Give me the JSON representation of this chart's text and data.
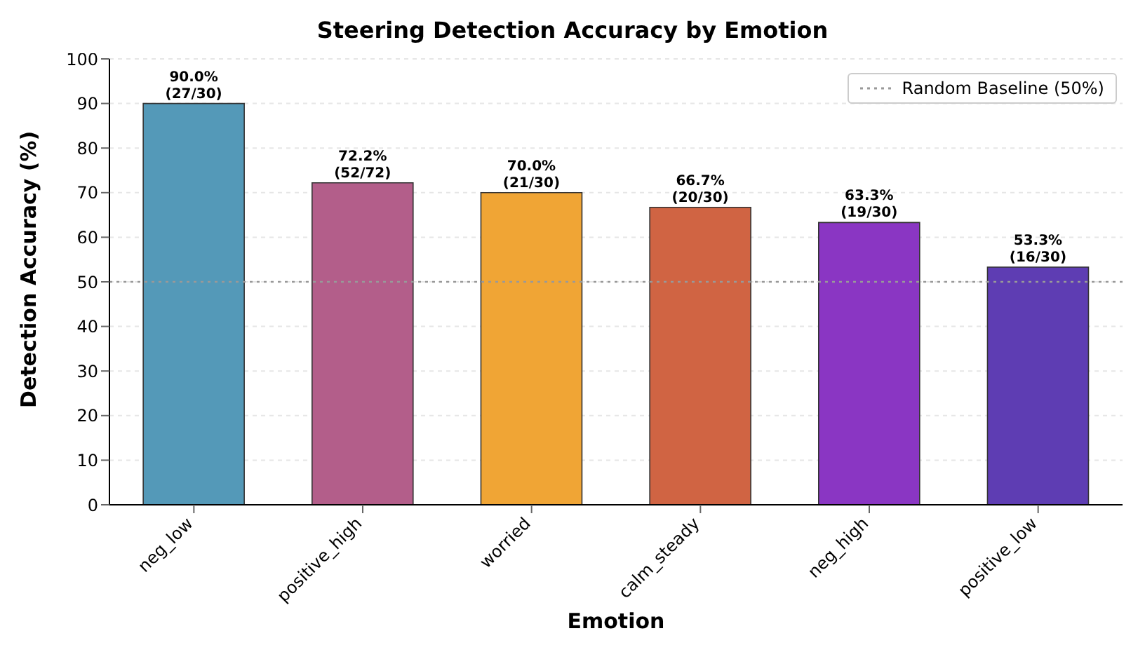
{
  "chart_data": {
    "type": "bar",
    "title": "Steering Detection Accuracy by Emotion",
    "xlabel": "Emotion",
    "ylabel": "Detection Accuracy (%)",
    "categories": [
      "neg_low",
      "positive_high",
      "worried",
      "calm_steady",
      "neg_high",
      "positive_low"
    ],
    "values": [
      90.0,
      72.2,
      70.0,
      66.7,
      63.3,
      53.3
    ],
    "colors": [
      "#5499b8",
      "#b35e8a",
      "#f0a535",
      "#d06443",
      "#8a36c3",
      "#5e3db3"
    ],
    "value_labels": [
      "90.0%\n(27/30)",
      "72.2%\n(52/72)",
      "70.0%\n(21/30)",
      "66.7%\n(20/30)",
      "63.3%\n(19/30)",
      "53.3%\n(16/30)"
    ],
    "ylim": [
      0,
      100
    ],
    "yticks": [
      0,
      10,
      20,
      30,
      40,
      50,
      60,
      70,
      80,
      90,
      100
    ],
    "grid": "y",
    "legend": "top right",
    "ref_lines": [
      {
        "axis": "y",
        "value": 50,
        "label": "Random Baseline (50%)",
        "color": "#999999",
        "line_style": "dotted"
      }
    ]
  }
}
